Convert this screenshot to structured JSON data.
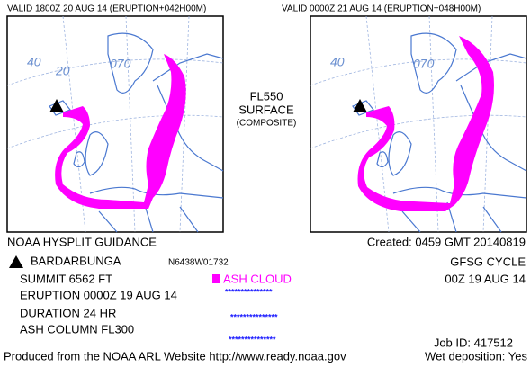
{
  "header": {
    "left_valid": "VALID 1800Z 20 AUG 14 (ERUPTION+042H00M)",
    "right_valid": "VALID 0000Z 21 AUG 14 (ERUPTION+048H00M)"
  },
  "maps": [
    {
      "grid_labels": [
        "40",
        "20",
        "070"
      ]
    },
    {
      "grid_labels": [
        "40",
        "070"
      ]
    }
  ],
  "center": {
    "level": "FL550",
    "base": "SURFACE",
    "mode": "(COMPOSITE)"
  },
  "info": {
    "title": "NOAA HYSPLIT GUIDANCE",
    "created": "Created: 0459 GMT 20140819",
    "volcano": "BARDARBUNGA",
    "location": "N6438W01732",
    "cycle": "GFSG CYCLE",
    "summit": "SUMMIT  6562 FT",
    "legend": "ASH CLOUD",
    "cycle_time": "00Z 19 AUG 14",
    "eruption": "ERUPTION 0000Z 19 AUG 14",
    "duration": "DURATION    24 HR",
    "column": "ASH COLUMN FL300",
    "stars": [
      "***************",
      "***************",
      "***************"
    ],
    "job": "Job ID: 417512",
    "produced": "Produced from the NOAA ARL Website http://www.ready.noaa.gov",
    "wet": "Wet deposition: Yes"
  }
}
